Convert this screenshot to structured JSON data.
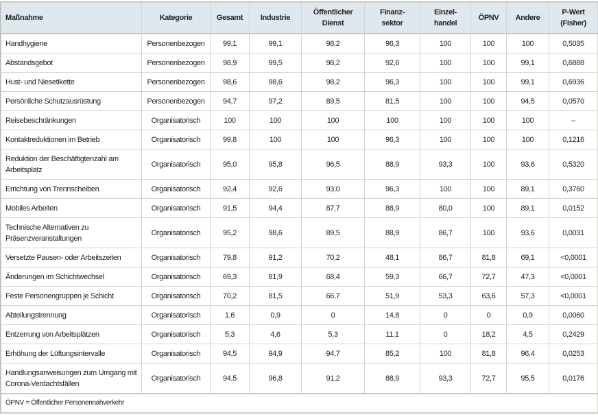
{
  "table": {
    "headers": [
      "Maßnahme",
      "Kategorie",
      "Gesamt",
      "Industrie",
      "Öffentlicher Dienst",
      "Finanz-sektor",
      "Einzel-handel",
      "ÖPNV",
      "Andere",
      "P-Wert (Fisher)"
    ],
    "rows": [
      [
        "Handhygiene",
        "Personenbezogen",
        "99,1",
        "99,1",
        "98,2",
        "96,3",
        "100",
        "100",
        "100",
        "0,5035"
      ],
      [
        "Abstandsgebot",
        "Personenbezogen",
        "98,9",
        "99,5",
        "98,2",
        "92,6",
        "100",
        "100",
        "99,1",
        "0,6888"
      ],
      [
        "Hust- und Niesetikette",
        "Personenbezogen",
        "98,6",
        "98,6",
        "98,2",
        "96,3",
        "100",
        "100",
        "99,1",
        "0,6936"
      ],
      [
        "Persönliche Schutzausrüstung",
        "Personenbezogen",
        "94,7",
        "97,2",
        "89,5",
        "81,5",
        "100",
        "100",
        "94,5",
        "0,0570"
      ],
      [
        "Reisebeschränkungen",
        "Organisatorisch",
        "100",
        "100",
        "100",
        "100",
        "100",
        "100",
        "100",
        "–"
      ],
      [
        "Kontaktreduktionen im Betrieb",
        "Organisatorisch",
        "99,8",
        "100",
        "100",
        "96,3",
        "100",
        "100",
        "100",
        "0,1216"
      ],
      [
        "Reduktion der Beschäftigtenzahl am Arbeitsplatz",
        "Organisatorisch",
        "95,0",
        "95,8",
        "96,5",
        "88,9",
        "93,3",
        "100",
        "93,6",
        "0,5320"
      ],
      [
        "Errichtung von Trennscheiben",
        "Organisatorisch",
        "92,4",
        "92,6",
        "93,0",
        "96,3",
        "100",
        "100",
        "89,1",
        "0,3760"
      ],
      [
        "Mobiles Arbeiten",
        "Organisatorisch",
        "91,5",
        "94,4",
        "87,7",
        "88,9",
        "80,0",
        "100",
        "89,1",
        "0,0152"
      ],
      [
        "Technische Alternativen zu Präsenzveranstaltungen",
        "Organisatorisch",
        "95,2",
        "98,6",
        "89,5",
        "88,9",
        "86,7",
        "100",
        "93,6",
        "0,0031"
      ],
      [
        "Versetzte Pausen- oder Arbeitszeiten",
        "Organisatorisch",
        "79,8",
        "91,2",
        "70,2",
        "48,1",
        "86,7",
        "81,8",
        "69,1",
        "<0,0001"
      ],
      [
        "Änderungen im Schichtwechsel",
        "Organisatorisch",
        "69,3",
        "81,9",
        "68,4",
        "59,3",
        "66,7",
        "72,7",
        "47,3",
        "<0,0001"
      ],
      [
        "Feste Personengruppen je Schicht",
        "Organisatorisch",
        "70,2",
        "81,5",
        "66,7",
        "51,9",
        "53,3",
        "63,6",
        "57,3",
        "<0,0001"
      ],
      [
        "Abteilungstrennung",
        "Organisatorisch",
        "1,6",
        "0,9",
        "0",
        "14,8",
        "0",
        "0",
        "0,9",
        "0,0060"
      ],
      [
        "Entzerrung von Arbeitsplätzen",
        "Organisatorisch",
        "5,3",
        "4,6",
        "5,3",
        "11,1",
        "0",
        "18,2",
        "4,5",
        "0,2429"
      ],
      [
        "Erhöhung der Lüftungsintervalle",
        "Organisatorisch",
        "94,5",
        "94,9",
        "94,7",
        "85,2",
        "100",
        "81,8",
        "96,4",
        "0,0253"
      ],
      [
        "Handlungsanweisungen zum Umgang mit Corona-Verdachtsfällen",
        "Organisatorisch",
        "94,5",
        "96,8",
        "91,2",
        "88,9",
        "93,3",
        "72,7",
        "95,5",
        "0,0176"
      ]
    ],
    "footnote": "ÖPNV = Öffentlicher Personennahverkehr"
  },
  "colors": {
    "header_bg": "#dfe8ee"
  }
}
